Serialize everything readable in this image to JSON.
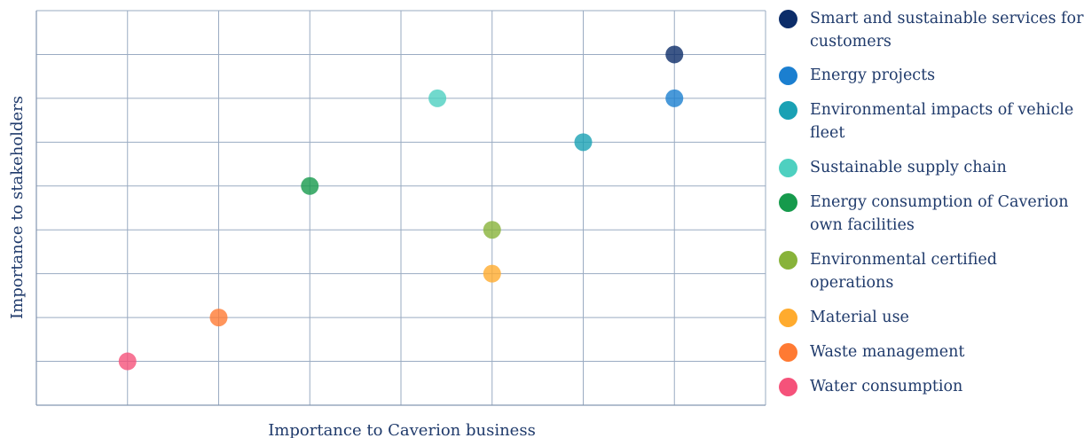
{
  "chart_data": {
    "type": "scatter",
    "title": "",
    "xlabel": "Importance to Caverion business",
    "ylabel": "Importance to stakeholders",
    "xlim": [
      0,
      8
    ],
    "ylim": [
      0,
      9
    ],
    "grid": true,
    "legend_position": "right",
    "series": [
      {
        "name": "Smart and sustainable services for customers",
        "color": "#0c2d69",
        "x": 7,
        "y": 8
      },
      {
        "name": "Energy projects",
        "color": "#1b7fd0",
        "x": 7,
        "y": 7
      },
      {
        "name": "Environmental impacts of vehicle fleet",
        "color": "#1aa1b4",
        "x": 6,
        "y": 6
      },
      {
        "name": "Sustainable supply chain",
        "color": "#4ed0c0",
        "x": 4.4,
        "y": 7
      },
      {
        "name": "Energy consumption of Caverion own facilities",
        "color": "#169a4c",
        "x": 3,
        "y": 5
      },
      {
        "name": "Environmental certified operations",
        "color": "#88b33a",
        "x": 5,
        "y": 4
      },
      {
        "name": "Material use",
        "color": "#ffab2e",
        "x": 5,
        "y": 3
      },
      {
        "name": "Waste management",
        "color": "#ff7a33",
        "x": 2,
        "y": 2
      },
      {
        "name": "Water consumption",
        "color": "#f5527a",
        "x": 1,
        "y": 1
      }
    ]
  }
}
